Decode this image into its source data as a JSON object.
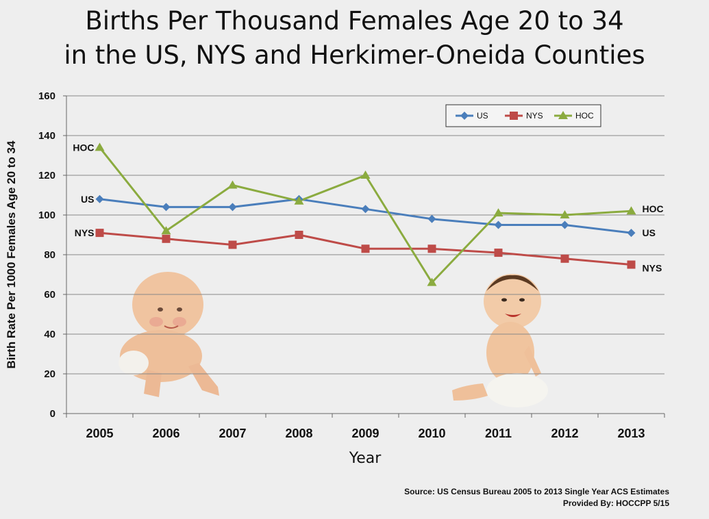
{
  "chart_data": {
    "type": "line",
    "title": [
      "Births Per Thousand Females Age 20 to 34",
      "in the US, NYS and Herkimer-Oneida Counties"
    ],
    "xlabel": "Year",
    "ylabel": "Birth Rate Per 1000 Females Age 20 to 34",
    "ylim": [
      0,
      160
    ],
    "yticks": [
      0,
      20,
      40,
      60,
      80,
      100,
      120,
      140,
      160
    ],
    "grid": true,
    "legend_position": "top-right",
    "categories": [
      "2005",
      "2006",
      "2007",
      "2008",
      "2009",
      "2010",
      "2011",
      "2012",
      "2013"
    ],
    "series": [
      {
        "name": "US",
        "color": "#4a7ebb",
        "marker": "diamond",
        "values": [
          108,
          104,
          104,
          108,
          103,
          98,
          95,
          95,
          91
        ]
      },
      {
        "name": "NYS",
        "color": "#be4b48",
        "marker": "square",
        "values": [
          91,
          88,
          85,
          90,
          83,
          83,
          81,
          78,
          75
        ]
      },
      {
        "name": "HOC",
        "color": "#8bab3f",
        "marker": "triangle",
        "values": [
          134,
          92,
          115,
          107,
          120,
          66,
          101,
          100,
          102
        ]
      }
    ],
    "annotations": {
      "start_labels": [
        "HOC",
        "US",
        "NYS"
      ],
      "end_labels": [
        "HOC",
        "US",
        "NYS"
      ]
    }
  },
  "source": {
    "line1": "Source: US Census Bureau 2005 to 2013 Single Year ACS Estimates",
    "line2": "Provided By: HOCCPP 5/15"
  }
}
